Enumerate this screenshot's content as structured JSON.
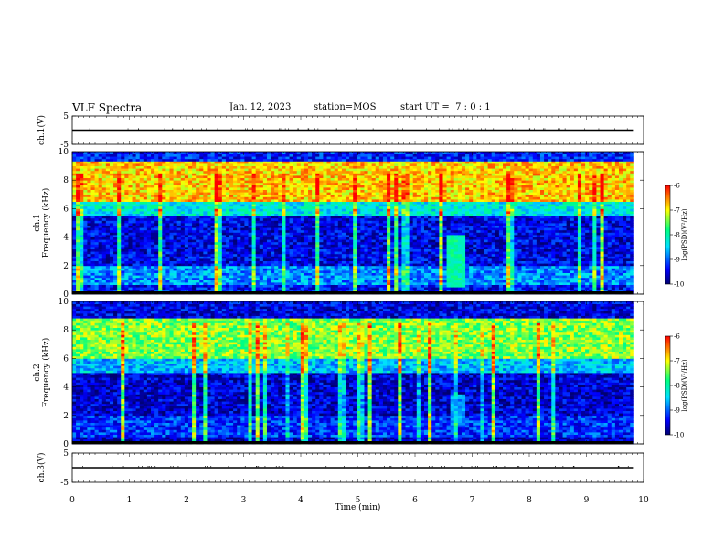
{
  "header": {
    "title": "VLF Spectra",
    "date": "Jan. 12, 2023",
    "station": "station=MOS",
    "start_ut": "start UT =  7 : 0 : 1"
  },
  "chart_data": [
    {
      "type": "line",
      "panel": "ch1-waveform",
      "ylabel": "ch.1(V)",
      "ylim": [
        -5,
        5
      ],
      "yticks": [
        "5",
        "-5"
      ],
      "x": [
        0,
        9.83
      ],
      "y": [
        0,
        0
      ],
      "xlim": [
        0,
        10
      ]
    },
    {
      "type": "heatmap",
      "panel": "ch1-spectrogram",
      "ylabel": "ch.1\nFrequency (kHz)",
      "ylabel_lines": [
        "ch.1",
        "Frequency (kHz)"
      ],
      "ylim": [
        0,
        10
      ],
      "yticks": [
        "0",
        "2",
        "4",
        "6",
        "8",
        "10"
      ],
      "xlim": [
        0,
        10
      ],
      "data_end_min": 9.83,
      "colorbar": {
        "label": "log(PSD)(V²/Hz)",
        "range": [
          -10,
          -6
        ],
        "ticks": [
          "-6",
          "-7",
          "-8",
          "-9",
          "-10"
        ]
      },
      "bands_log_psd": [
        {
          "f_khz": [
            0,
            0.6
          ],
          "level": -9.4
        },
        {
          "f_khz": [
            0.6,
            2.0
          ],
          "level": -8.8
        },
        {
          "f_khz": [
            2.0,
            5.5
          ],
          "level": -9.5
        },
        {
          "f_khz": [
            5.5,
            6.5
          ],
          "level": -8.3
        },
        {
          "f_khz": [
            6.5,
            9.3
          ],
          "level": -6.8
        },
        {
          "f_khz": [
            9.3,
            10
          ],
          "level": -9.3
        }
      ],
      "burst": {
        "t_min": [
          6.55,
          6.9
        ],
        "f_khz": [
          0.5,
          4.2
        ],
        "level": -8.0
      }
    },
    {
      "type": "heatmap",
      "panel": "ch2-spectrogram",
      "ylabel": "ch.2\nFrequency (kHz)",
      "ylabel_lines": [
        "ch.2",
        "Frequency (kHz)"
      ],
      "ylim": [
        0,
        10
      ],
      "yticks": [
        "0",
        "2",
        "4",
        "6",
        "8",
        "10"
      ],
      "xlim": [
        0,
        10
      ],
      "data_end_min": 9.83,
      "colorbar": {
        "label": "log(PSD)(V²/Hz)",
        "range": [
          -10,
          -6
        ],
        "ticks": [
          "-6",
          "-7",
          "-8",
          "-9",
          "-10"
        ]
      },
      "bands_log_psd": [
        {
          "f_khz": [
            0,
            0.5
          ],
          "level": -9.7
        },
        {
          "f_khz": [
            0.5,
            2.0
          ],
          "level": -9.2
        },
        {
          "f_khz": [
            2.0,
            5.0
          ],
          "level": -9.6
        },
        {
          "f_khz": [
            5.0,
            6.0
          ],
          "level": -8.6
        },
        {
          "f_khz": [
            6.0,
            8.8
          ],
          "level": -7.4
        },
        {
          "f_khz": [
            8.8,
            10
          ],
          "level": -9.5
        }
      ],
      "burst": {
        "t_min": [
          6.6,
          6.85
        ],
        "f_khz": [
          1.5,
          3.5
        ],
        "level": -8.8
      }
    },
    {
      "type": "line",
      "panel": "ch3-waveform",
      "ylabel": "ch.3(V)",
      "ylim": [
        -5,
        5
      ],
      "yticks": [
        "5",
        "-5"
      ],
      "x": [
        0,
        9.83
      ],
      "y": [
        0,
        0
      ],
      "xlim": [
        0,
        10
      ],
      "xlabel": "Time (min)",
      "xticks": [
        "0",
        "1",
        "2",
        "3",
        "4",
        "5",
        "6",
        "7",
        "8",
        "9",
        "10"
      ]
    }
  ],
  "colors": {
    "colormap": [
      "#000070",
      "#0000ff",
      "#00e0ff",
      "#00ff80",
      "#ffff00",
      "#ff0000"
    ],
    "axis": "#000000"
  }
}
